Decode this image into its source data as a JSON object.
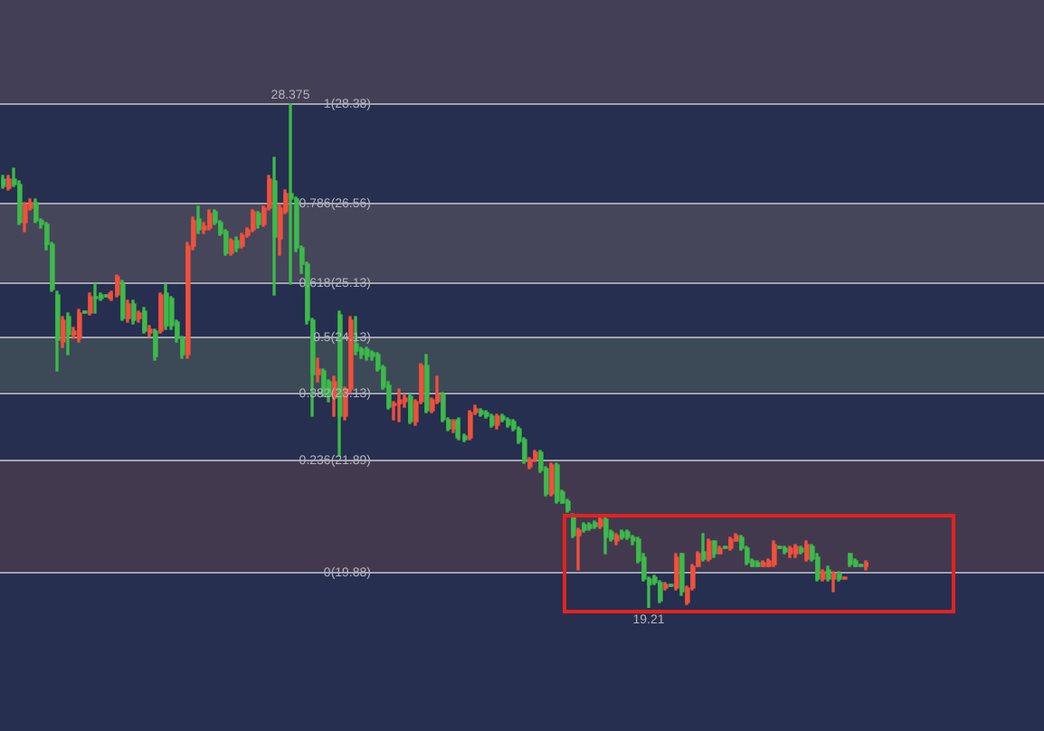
{
  "chart_data": {
    "type": "candlestick",
    "categories": [
      null,
      null,
      null,
      null,
      null,
      null,
      null,
      null,
      null,
      null,
      null,
      null,
      null,
      null,
      null,
      null,
      null,
      null,
      null,
      null,
      null,
      null,
      null,
      null,
      null,
      null,
      null,
      null,
      null,
      null,
      null,
      null,
      null,
      null,
      null,
      null,
      null,
      null,
      null,
      null,
      null,
      null,
      null,
      null,
      null,
      null,
      null,
      null,
      null,
      null,
      null,
      null,
      null,
      null,
      null,
      null,
      null,
      null,
      null,
      null,
      null,
      null,
      null,
      null,
      null,
      null,
      null,
      null,
      null,
      null,
      null,
      null,
      null,
      null,
      null,
      null,
      null,
      null,
      null,
      null,
      null,
      null,
      null,
      null,
      null,
      null,
      null,
      null,
      null,
      null,
      null,
      null,
      null,
      null,
      null,
      null,
      null,
      null,
      null,
      null,
      null,
      null,
      null,
      null,
      null,
      null,
      null,
      null,
      null,
      null,
      null,
      null,
      null,
      null,
      null,
      null,
      null,
      null,
      null,
      null,
      null,
      null,
      null,
      null,
      null,
      null,
      null,
      null,
      null,
      null,
      null,
      null,
      null,
      null,
      null,
      null,
      null,
      null,
      null,
      null,
      null,
      null,
      null,
      null,
      null,
      null,
      null,
      null,
      null,
      null,
      null,
      null,
      null,
      null,
      null,
      null,
      null,
      null,
      null,
      null
    ],
    "ohlc": [
      [
        27.0,
        27.05,
        26.84,
        26.87
      ],
      [
        26.84,
        27.07,
        26.8,
        27.0
      ],
      [
        27.0,
        27.2,
        26.87,
        26.9
      ],
      [
        26.9,
        26.95,
        26.18,
        26.21
      ],
      [
        26.21,
        26.58,
        26.05,
        26.54
      ],
      [
        26.48,
        26.62,
        26.45,
        26.58
      ],
      [
        26.58,
        26.62,
        26.21,
        26.25
      ],
      [
        26.25,
        26.28,
        26.12,
        26.18
      ],
      [
        26.18,
        26.21,
        25.72,
        25.82
      ],
      [
        25.82,
        25.85,
        24.97,
        25.0
      ],
      [
        24.9,
        24.95,
        23.52,
        24.08
      ],
      [
        24.05,
        24.5,
        23.95,
        24.44
      ],
      [
        24.51,
        24.55,
        23.82,
        24.18
      ],
      [
        24.18,
        24.3,
        24.12,
        24.25
      ],
      [
        24.11,
        24.62,
        24.05,
        24.57
      ],
      [
        24.61,
        24.61,
        24.57,
        24.57
      ],
      [
        24.57,
        24.92,
        24.52,
        24.87
      ],
      [
        24.87,
        25.1,
        24.57,
        24.84
      ],
      [
        24.9,
        24.93,
        24.8,
        24.84
      ],
      [
        24.9,
        24.9,
        24.87,
        24.87
      ],
      [
        24.84,
        24.97,
        24.8,
        24.93
      ],
      [
        24.9,
        25.26,
        24.87,
        25.23
      ],
      [
        25.1,
        25.16,
        24.44,
        24.47
      ],
      [
        24.47,
        24.78,
        24.41,
        24.74
      ],
      [
        24.74,
        24.78,
        24.38,
        24.44
      ],
      [
        24.47,
        24.61,
        24.41,
        24.57
      ],
      [
        24.61,
        24.65,
        24.21,
        24.25
      ],
      [
        24.21,
        24.34,
        24.15,
        24.28
      ],
      [
        24.25,
        24.28,
        23.72,
        23.79
      ],
      [
        24.25,
        24.93,
        24.21,
        24.9
      ],
      [
        24.93,
        25.1,
        24.28,
        24.34
      ],
      [
        24.84,
        24.87,
        24.28,
        24.34
      ],
      [
        24.41,
        24.44,
        24.05,
        24.11
      ],
      [
        24.11,
        24.15,
        23.75,
        23.82
      ],
      [
        23.82,
        25.85,
        23.75,
        25.79
      ],
      [
        25.79,
        26.31,
        25.72,
        26.25
      ],
      [
        26.28,
        26.51,
        26.02,
        26.08
      ],
      [
        26.08,
        26.21,
        26.02,
        26.15
      ],
      [
        26.12,
        26.45,
        26.08,
        26.38
      ],
      [
        26.41,
        26.45,
        26.18,
        26.21
      ],
      [
        26.21,
        26.25,
        25.98,
        26.02
      ],
      [
        26.05,
        26.08,
        25.6,
        25.66
      ],
      [
        25.66,
        25.92,
        25.62,
        25.89
      ],
      [
        25.89,
        25.95,
        25.69,
        25.75
      ],
      [
        25.79,
        26.02,
        25.75,
        25.98
      ],
      [
        25.98,
        26.12,
        25.95,
        26.08
      ],
      [
        26.08,
        26.45,
        26.05,
        26.41
      ],
      [
        26.38,
        26.41,
        26.12,
        26.18
      ],
      [
        26.18,
        26.51,
        26.15,
        26.48
      ],
      [
        26.48,
        27.07,
        26.45,
        27.0
      ],
      [
        26.97,
        27.4,
        24.9,
        25.95
      ],
      [
        25.92,
        26.54,
        25.62,
        26.48
      ],
      [
        26.41,
        26.8,
        26.38,
        26.74
      ],
      [
        26.74,
        28.375,
        25.1,
        26.64
      ],
      [
        26.64,
        26.68,
        25.69,
        25.75
      ],
      [
        25.75,
        25.79,
        25.3,
        25.46
      ],
      [
        25.46,
        25.49,
        24.38,
        24.44
      ],
      [
        24.44,
        24.47,
        22.7,
        23.46
      ],
      [
        23.46,
        23.75,
        23.3,
        23.56
      ],
      [
        23.52,
        23.56,
        23.06,
        23.13
      ],
      [
        23.3,
        23.36,
        22.97,
        23.06
      ],
      [
        23.03,
        23.4,
        22.7,
        23.3
      ],
      [
        24.54,
        24.61,
        21.98,
        22.7
      ],
      [
        22.7,
        23.23,
        22.64,
        23.19
      ],
      [
        23.19,
        24.51,
        23.13,
        24.44
      ],
      [
        24.02,
        24.51,
        23.82,
        23.88
      ],
      [
        23.92,
        23.95,
        23.75,
        23.82
      ],
      [
        23.92,
        23.95,
        23.72,
        23.79
      ],
      [
        23.85,
        23.88,
        23.72,
        23.79
      ],
      [
        23.82,
        23.85,
        23.52,
        23.56
      ],
      [
        23.59,
        23.62,
        23.19,
        23.23
      ],
      [
        23.26,
        23.3,
        22.83,
        22.87
      ],
      [
        22.9,
        22.97,
        22.64,
        22.93
      ],
      [
        22.93,
        23.19,
        22.6,
        23.0
      ],
      [
        22.97,
        23.1,
        22.87,
        23.03
      ],
      [
        23.06,
        23.1,
        22.57,
        22.6
      ],
      [
        22.6,
        23.0,
        22.54,
        22.97
      ],
      [
        22.97,
        23.66,
        22.93,
        23.62
      ],
      [
        23.62,
        23.82,
        22.77,
        22.8
      ],
      [
        22.8,
        23.03,
        22.77,
        23.0
      ],
      [
        22.97,
        23.43,
        22.93,
        23.1
      ],
      [
        23.1,
        23.13,
        22.6,
        22.64
      ],
      [
        22.64,
        22.67,
        22.44,
        22.47
      ],
      [
        22.47,
        22.64,
        22.41,
        22.6
      ],
      [
        22.64,
        22.67,
        22.28,
        22.31
      ],
      [
        22.34,
        22.37,
        22.24,
        22.28
      ],
      [
        22.31,
        22.8,
        22.28,
        22.77
      ],
      [
        22.77,
        22.9,
        22.74,
        22.83
      ],
      [
        22.8,
        22.83,
        22.7,
        22.74
      ],
      [
        22.77,
        22.8,
        22.67,
        22.7
      ],
      [
        22.7,
        22.74,
        22.5,
        22.54
      ],
      [
        22.54,
        22.74,
        22.47,
        22.7
      ],
      [
        22.7,
        22.74,
        22.6,
        22.64
      ],
      [
        22.64,
        22.67,
        22.5,
        22.54
      ],
      [
        22.6,
        22.64,
        22.44,
        22.47
      ],
      [
        22.47,
        22.5,
        22.21,
        22.24
      ],
      [
        22.28,
        22.31,
        21.85,
        21.88
      ],
      [
        21.78,
        21.95,
        21.75,
        21.91
      ],
      [
        21.91,
        22.08,
        21.88,
        22.05
      ],
      [
        22.05,
        22.08,
        21.68,
        21.72
      ],
      [
        21.75,
        21.78,
        21.26,
        21.29
      ],
      [
        21.29,
        21.85,
        21.26,
        21.82
      ],
      [
        21.82,
        21.85,
        21.13,
        21.16
      ],
      [
        21.32,
        21.36,
        21.1,
        21.13
      ],
      [
        21.16,
        21.19,
        20.95,
        20.99
      ],
      [
        20.9,
        20.93,
        20.5,
        20.54
      ],
      [
        20.54,
        20.67,
        19.91,
        20.63
      ],
      [
        20.73,
        20.77,
        20.6,
        20.63
      ],
      [
        20.73,
        20.77,
        20.63,
        20.67
      ],
      [
        20.77,
        20.8,
        20.67,
        20.7
      ],
      [
        20.7,
        20.87,
        20.67,
        20.83
      ],
      [
        20.83,
        20.87,
        20.21,
        20.5
      ],
      [
        20.6,
        20.63,
        20.44,
        20.47
      ],
      [
        20.41,
        20.57,
        20.37,
        20.54
      ],
      [
        20.6,
        20.63,
        20.47,
        20.5
      ],
      [
        20.6,
        20.63,
        20.47,
        20.5
      ],
      [
        20.5,
        20.54,
        20.37,
        20.41
      ],
      [
        20.47,
        20.5,
        20.04,
        20.08
      ],
      [
        20.14,
        20.18,
        19.71,
        19.75
      ],
      [
        19.75,
        19.78,
        19.21,
        19.65
      ],
      [
        19.78,
        19.81,
        19.65,
        19.68
      ],
      [
        19.68,
        19.71,
        19.32,
        19.35
      ],
      [
        19.58,
        19.68,
        19.55,
        19.65
      ],
      [
        19.65,
        19.65,
        19.62,
        19.62
      ],
      [
        19.58,
        20.21,
        19.55,
        20.14
      ],
      [
        20.18,
        20.21,
        19.45,
        19.49
      ],
      [
        19.32,
        19.62,
        19.29,
        19.58
      ],
      [
        19.58,
        20.01,
        19.55,
        19.98
      ],
      [
        19.98,
        20.24,
        19.95,
        20.21
      ],
      [
        20.24,
        20.57,
        20.08,
        20.11
      ],
      [
        20.11,
        20.47,
        20.08,
        20.44
      ],
      [
        20.41,
        20.44,
        20.14,
        20.18
      ],
      [
        20.21,
        20.34,
        20.18,
        20.31
      ],
      [
        20.34,
        20.34,
        20.31,
        20.31
      ],
      [
        20.31,
        20.5,
        20.27,
        20.47
      ],
      [
        20.44,
        20.57,
        20.41,
        20.54
      ],
      [
        20.5,
        20.54,
        20.27,
        20.31
      ],
      [
        20.31,
        20.34,
        20.01,
        20.04
      ],
      [
        20.08,
        20.11,
        19.95,
        19.98
      ],
      [
        20.04,
        20.08,
        19.95,
        19.98
      ],
      [
        19.98,
        20.08,
        19.95,
        20.04
      ],
      [
        19.98,
        20.11,
        19.95,
        20.08
      ],
      [
        20.01,
        20.41,
        19.98,
        20.37
      ],
      [
        20.34,
        20.34,
        20.31,
        20.31
      ],
      [
        20.31,
        20.34,
        20.21,
        20.24
      ],
      [
        20.18,
        20.34,
        20.14,
        20.31
      ],
      [
        20.18,
        20.37,
        20.14,
        20.34
      ],
      [
        20.31,
        20.34,
        20.21,
        20.24
      ],
      [
        20.11,
        20.41,
        20.08,
        20.37
      ],
      [
        20.34,
        20.37,
        20.08,
        20.11
      ],
      [
        20.14,
        20.18,
        19.71,
        19.75
      ],
      [
        19.75,
        19.91,
        19.71,
        19.88
      ],
      [
        19.91,
        19.95,
        19.71,
        19.75
      ],
      [
        19.75,
        19.88,
        19.52,
        19.85
      ],
      [
        19.85,
        19.88,
        19.71,
        19.75
      ],
      [
        19.75,
        19.78,
        19.75,
        19.78
      ],
      [
        20.18,
        20.21,
        19.98,
        20.01
      ],
      [
        20.08,
        20.11,
        19.95,
        19.98
      ],
      [
        20.01,
        20.01,
        19.95,
        19.95
      ],
      [
        19.95,
        20.08,
        19.91,
        20.04
      ]
    ],
    "colors": [
      "#3cba4a",
      "#f0503c",
      "#3cba4a",
      "#3cba4a",
      "#f0503c",
      "#f0503c",
      "#3cba4a",
      "#3cba4a",
      "#3cba4a",
      "#3cba4a",
      "#3cba4a",
      "#f0503c",
      "#3cba4a",
      "#f0503c",
      "#f0503c",
      "#3cba4a",
      "#f0503c",
      "#3cba4a",
      "#3cba4a",
      "#3cba4a",
      "#f0503c",
      "#f0503c",
      "#3cba4a",
      "#f0503c",
      "#3cba4a",
      "#f0503c",
      "#3cba4a",
      "#f0503c",
      "#3cba4a",
      "#f0503c",
      "#3cba4a",
      "#3cba4a",
      "#3cba4a",
      "#3cba4a",
      "#f0503c",
      "#f0503c",
      "#3cba4a",
      "#f0503c",
      "#f0503c",
      "#3cba4a",
      "#3cba4a",
      "#3cba4a",
      "#f0503c",
      "#3cba4a",
      "#f0503c",
      "#f0503c",
      "#f0503c",
      "#3cba4a",
      "#f0503c",
      "#f0503c",
      "#3cba4a",
      "#f0503c",
      "#f0503c",
      "#3cba4a",
      "#3cba4a",
      "#3cba4a",
      "#3cba4a",
      "#3cba4a",
      "#f0503c",
      "#3cba4a",
      "#3cba4a",
      "#f0503c",
      "#3cba4a",
      "#f0503c",
      "#f0503c",
      "#3cba4a",
      "#3cba4a",
      "#3cba4a",
      "#3cba4a",
      "#3cba4a",
      "#3cba4a",
      "#3cba4a",
      "#f0503c",
      "#f0503c",
      "#f0503c",
      "#3cba4a",
      "#f0503c",
      "#f0503c",
      "#3cba4a",
      "#f0503c",
      "#f0503c",
      "#3cba4a",
      "#3cba4a",
      "#f0503c",
      "#3cba4a",
      "#3cba4a",
      "#f0503c",
      "#f0503c",
      "#3cba4a",
      "#3cba4a",
      "#3cba4a",
      "#f0503c",
      "#3cba4a",
      "#3cba4a",
      "#3cba4a",
      "#3cba4a",
      "#3cba4a",
      "#f0503c",
      "#f0503c",
      "#3cba4a",
      "#3cba4a",
      "#f0503c",
      "#3cba4a",
      "#3cba4a",
      "#3cba4a",
      "#3cba4a",
      "#f0503c",
      "#3cba4a",
      "#3cba4a",
      "#3cba4a",
      "#f0503c",
      "#3cba4a",
      "#3cba4a",
      "#f0503c",
      "#3cba4a",
      "#3cba4a",
      "#3cba4a",
      "#3cba4a",
      "#3cba4a",
      "#3cba4a",
      "#3cba4a",
      "#3cba4a",
      "#f0503c",
      "#3cba4a",
      "#f0503c",
      "#3cba4a",
      "#f0503c",
      "#f0503c",
      "#f0503c",
      "#3cba4a",
      "#f0503c",
      "#3cba4a",
      "#f0503c",
      "#3cba4a",
      "#f0503c",
      "#f0503c",
      "#3cba4a",
      "#3cba4a",
      "#3cba4a",
      "#3cba4a",
      "#f0503c",
      "#f0503c",
      "#f0503c",
      "#3cba4a",
      "#3cba4a",
      "#f0503c",
      "#f0503c",
      "#3cba4a",
      "#f0503c",
      "#3cba4a",
      "#3cba4a",
      "#f0503c",
      "#3cba4a",
      "#f0503c",
      "#3cba4a",
      "#f0503c",
      "#3cba4a",
      "#3cba4a",
      "#3cba4a",
      "#f0503c"
    ],
    "tick_labels": false,
    "bands": [
      {
        "axis": "y",
        "from": 28.38,
        "to": 30.25,
        "color": "#433f56"
      },
      {
        "axis": "y",
        "from": 25.13,
        "to": 26.56,
        "color": "#45465a"
      },
      {
        "axis": "y",
        "from": 23.13,
        "to": 24.13,
        "color": "#3c4a57"
      },
      {
        "axis": "y",
        "from": 19.88,
        "to": 21.89,
        "color": "#43394f"
      }
    ],
    "ref_lines": [
      {
        "axis": "y",
        "value": 28.38,
        "label": "1(28.38)",
        "color": "#a3a3ad"
      },
      {
        "axis": "y",
        "value": 26.56,
        "label": "0.786(26.56)",
        "color": "#a3a3ad"
      },
      {
        "axis": "y",
        "value": 25.13,
        "label": "0.618(25.13)",
        "color": "#a3a3ad"
      },
      {
        "axis": "y",
        "value": 24.13,
        "label": "0.5(24.13)",
        "color": "#a3a3ad"
      },
      {
        "axis": "y",
        "value": 23.13,
        "label": "0.382(23.13)",
        "color": "#a3a3ad"
      },
      {
        "axis": "y",
        "value": 21.89,
        "label": "0.236(21.89)",
        "color": "#a3a3ad"
      },
      {
        "axis": "y",
        "value": 19.88,
        "label": "0(19.88)",
        "color": "#a3a3ad"
      }
    ],
    "annotations": [
      {
        "text": "28.375",
        "y": 28.375
      },
      {
        "text": "19.21",
        "y": 19.21
      }
    ]
  }
}
